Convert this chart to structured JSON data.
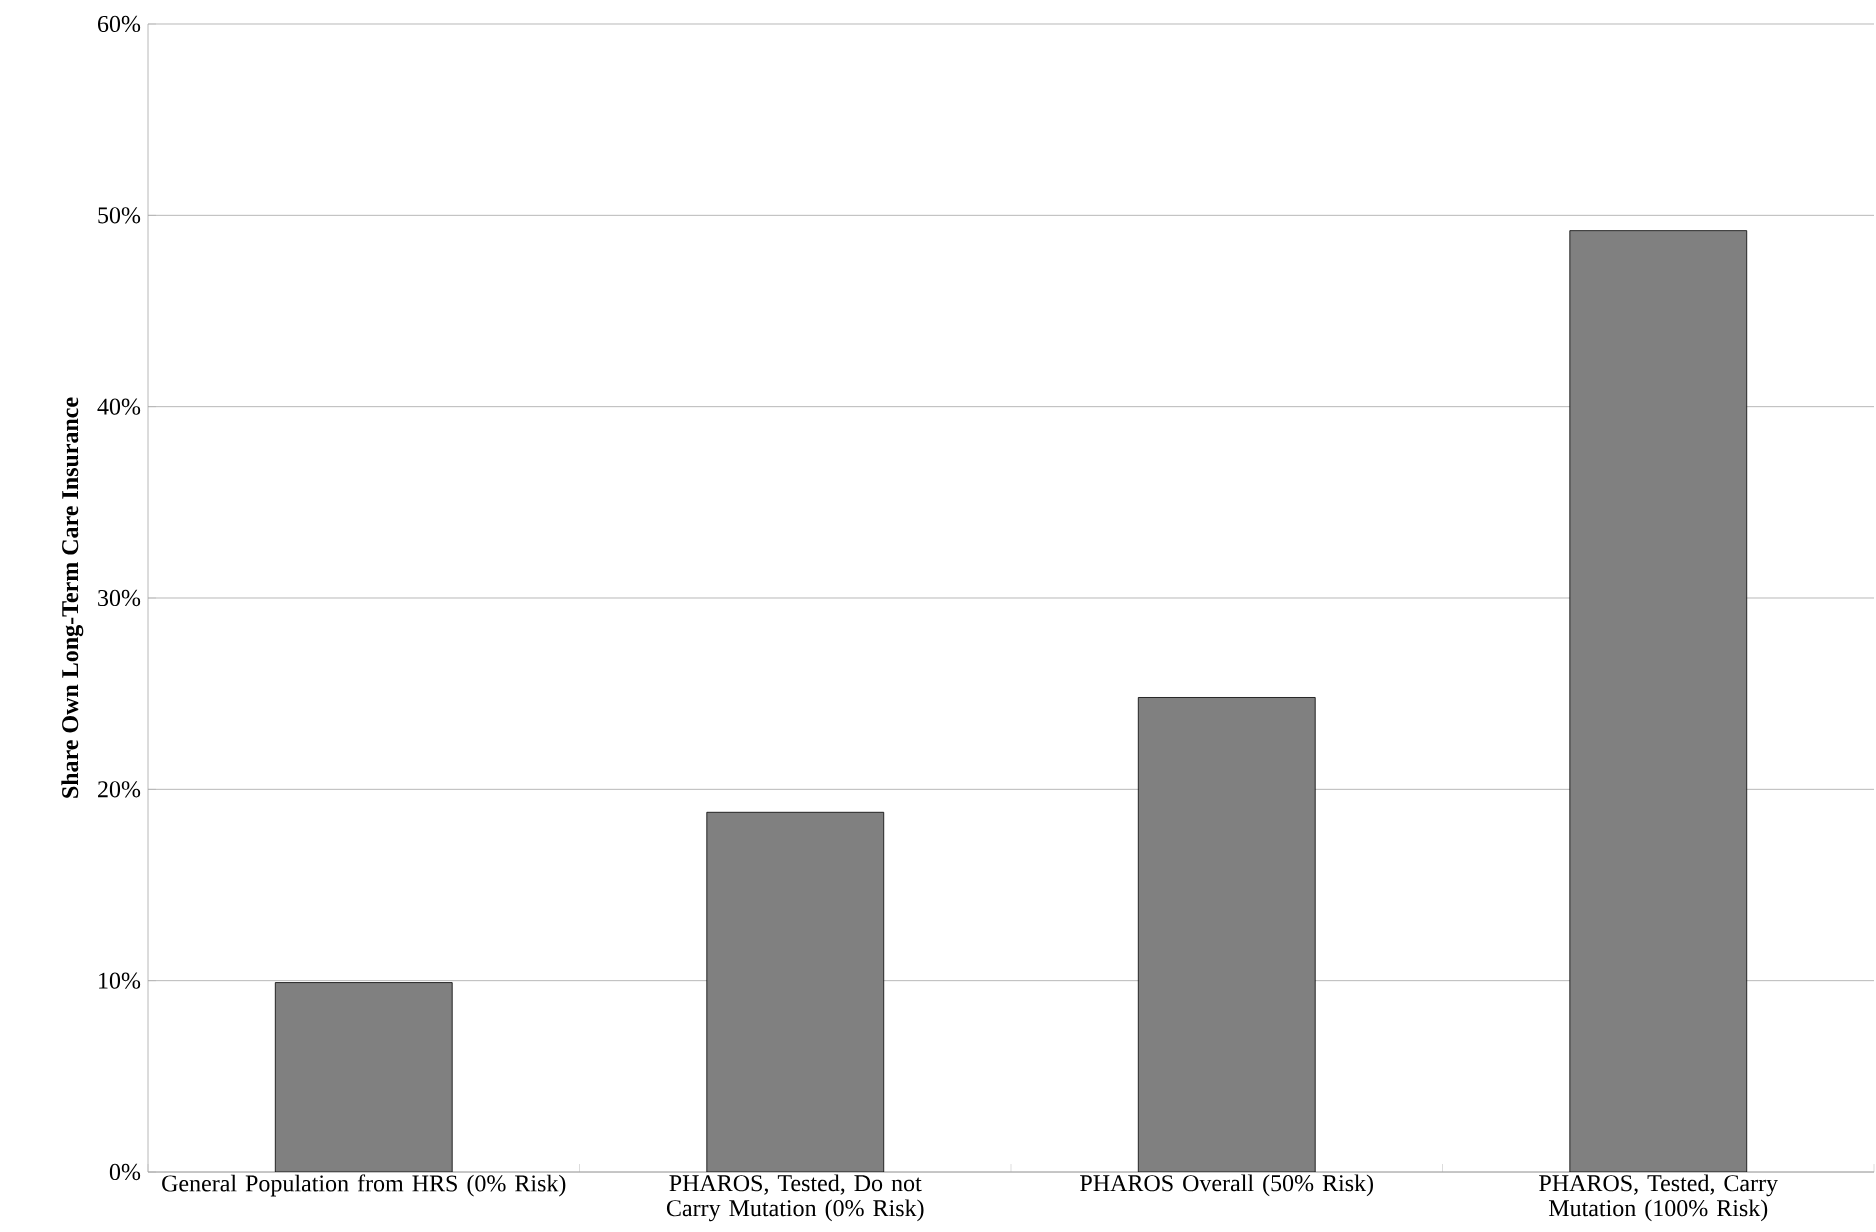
{
  "chart_data": {
    "type": "bar",
    "ylabel": "Share Own Long-Term Care Insurance",
    "categories": [
      "General Population from HRS (0% Risk)",
      "PHAROS, Tested, Do not Carry Mutation (0% Risk)",
      "PHAROS Overall (50% Risk)",
      "PHAROS, Tested, Carry Mutation (100% Risk)"
    ],
    "values": [
      9.9,
      18.8,
      24.8,
      49.2
    ],
    "color": "#808080",
    "ylim": [
      0,
      60
    ],
    "yticks": [
      {
        "value": 0,
        "label": "0%"
      },
      {
        "value": 10,
        "label": "10%"
      },
      {
        "value": 20,
        "label": "20%"
      },
      {
        "value": 30,
        "label": "30%"
      },
      {
        "value": 40,
        "label": "40%"
      },
      {
        "value": 50,
        "label": "50%"
      },
      {
        "value": 60,
        "label": "60%"
      }
    ],
    "grid": "y"
  }
}
